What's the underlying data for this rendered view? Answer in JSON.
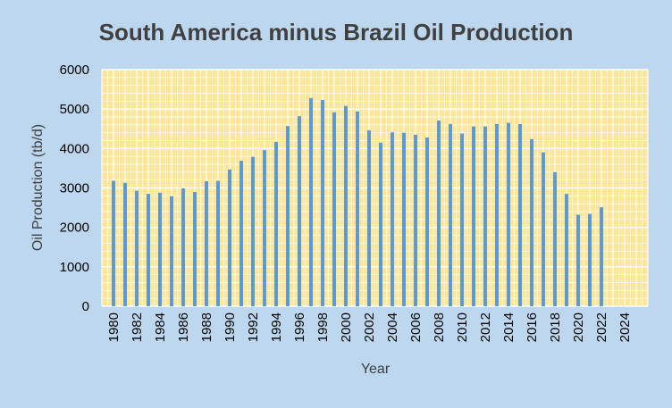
{
  "colors": {
    "background": "#bdd7ee",
    "plot_area": "#ffe699",
    "grid": "#ffffff",
    "bar": "#5b9bd5",
    "title": "#404040"
  },
  "chart_data": {
    "type": "bar",
    "title": "South America minus Brazil Oil Production",
    "xlabel": "Year",
    "ylabel": "Oil Production (tb/d)",
    "ylim": [
      0,
      6000
    ],
    "xlim": [
      1979,
      2026
    ],
    "yticks": [
      0,
      1000,
      2000,
      3000,
      4000,
      5000,
      6000
    ],
    "xticks": [
      1980,
      1982,
      1984,
      1986,
      1988,
      1990,
      1992,
      1994,
      1996,
      1998,
      2000,
      2002,
      2004,
      2006,
      2008,
      2010,
      2012,
      2014,
      2016,
      2018,
      2020,
      2022,
      2024
    ],
    "grid": true,
    "legend": "none",
    "series": [
      {
        "x": [
          1980,
          1981,
          1982,
          1983,
          1984,
          1985,
          1986,
          1987,
          1988,
          1989,
          1990,
          1991,
          1992,
          1993,
          1994,
          1995,
          1996,
          1997,
          1998,
          1999,
          2000,
          2001,
          2002,
          2003,
          2004,
          2005,
          2006,
          2007,
          2008,
          2009,
          2010,
          2011,
          2012,
          2013,
          2014,
          2015,
          2016,
          2017,
          2018,
          2019,
          2020,
          2021,
          2022
        ],
        "values": [
          3180,
          3130,
          2930,
          2850,
          2880,
          2790,
          2990,
          2900,
          3170,
          3180,
          3470,
          3690,
          3790,
          3960,
          4170,
          4570,
          4820,
          5280,
          5230,
          4920,
          5080,
          4940,
          4460,
          4150,
          4410,
          4400,
          4350,
          4280,
          4710,
          4620,
          4380,
          4560,
          4560,
          4620,
          4650,
          4620,
          4240,
          3900,
          3400,
          2850,
          2320,
          2340,
          2510
        ]
      }
    ]
  }
}
